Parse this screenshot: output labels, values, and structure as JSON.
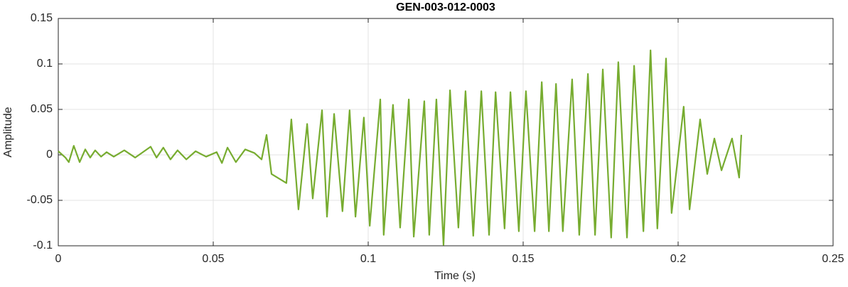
{
  "chart_data": {
    "type": "line",
    "title": "GEN-003-012-0003",
    "x_label": "Time (s)",
    "y_label": "Amplitude",
    "xlim": [
      0,
      0.25
    ],
    "xticks": [
      0,
      0.05,
      0.1,
      0.15,
      0.2,
      0.25
    ],
    "ylim": [
      -0.1,
      0.15
    ],
    "yticks": [
      -0.1,
      -0.05,
      0,
      0.05,
      0.1,
      0.15
    ],
    "grid": true,
    "x": [
      0,
      0.0023,
      0.0034,
      0.005,
      0.0069,
      0.0087,
      0.0103,
      0.0119,
      0.0138,
      0.0156,
      0.0179,
      0.0213,
      0.0248,
      0.0298,
      0.0317,
      0.0339,
      0.0362,
      0.0385,
      0.0413,
      0.0443,
      0.0477,
      0.0511,
      0.0528,
      0.0546,
      0.0573,
      0.0603,
      0.0633,
      0.0656,
      0.0672,
      0.0688,
      0.0736,
      0.0752,
      0.0775,
      0.0803,
      0.0821,
      0.0851,
      0.0867,
      0.089,
      0.0917,
      0.094,
      0.0959,
      0.0986,
      0.1005,
      0.1039,
      0.105,
      0.108,
      0.1103,
      0.1131,
      0.1147,
      0.1181,
      0.1197,
      0.122,
      0.1243,
      0.1264,
      0.1291,
      0.1314,
      0.1339,
      0.1365,
      0.139,
      0.1411,
      0.144,
      0.1459,
      0.1486,
      0.1509,
      0.1537,
      0.156,
      0.1583,
      0.1606,
      0.1628,
      0.1658,
      0.1681,
      0.1709,
      0.1732,
      0.1757,
      0.1784,
      0.1807,
      0.1835,
      0.1858,
      0.1888,
      0.1911,
      0.1933,
      0.1961,
      0.1979,
      0.2018,
      0.2037,
      0.2071,
      0.2094,
      0.2117,
      0.214,
      0.2174,
      0.2197,
      0.2204
    ],
    "series": [
      {
        "name": "Amplitude",
        "color": "#77ac30",
        "values": [
          0.004,
          -0.003,
          -0.008,
          0.01,
          -0.008,
          0.006,
          -0.003,
          0.005,
          -0.002,
          0.003,
          -0.002,
          0.005,
          -0.003,
          0.009,
          -0.003,
          0.008,
          -0.005,
          0.005,
          -0.005,
          0.004,
          -0.002,
          0.003,
          -0.009,
          0.008,
          -0.008,
          0.006,
          0.002,
          -0.005,
          0.022,
          -0.021,
          -0.031,
          0.039,
          -0.06,
          0.034,
          -0.048,
          0.049,
          -0.068,
          0.045,
          -0.062,
          0.049,
          -0.068,
          0.041,
          -0.078,
          0.061,
          -0.088,
          0.055,
          -0.08,
          0.061,
          -0.09,
          0.059,
          -0.088,
          0.061,
          -0.099,
          0.071,
          -0.08,
          0.07,
          -0.089,
          0.07,
          -0.088,
          0.069,
          -0.081,
          0.069,
          -0.084,
          0.07,
          -0.084,
          0.08,
          -0.084,
          0.078,
          -0.084,
          0.083,
          -0.088,
          0.089,
          -0.088,
          0.094,
          -0.091,
          0.102,
          -0.091,
          0.098,
          -0.084,
          0.115,
          -0.081,
          0.106,
          -0.064,
          0.053,
          -0.06,
          0.039,
          -0.021,
          0.018,
          -0.017,
          0.018,
          -0.025,
          0.022
        ]
      }
    ]
  }
}
